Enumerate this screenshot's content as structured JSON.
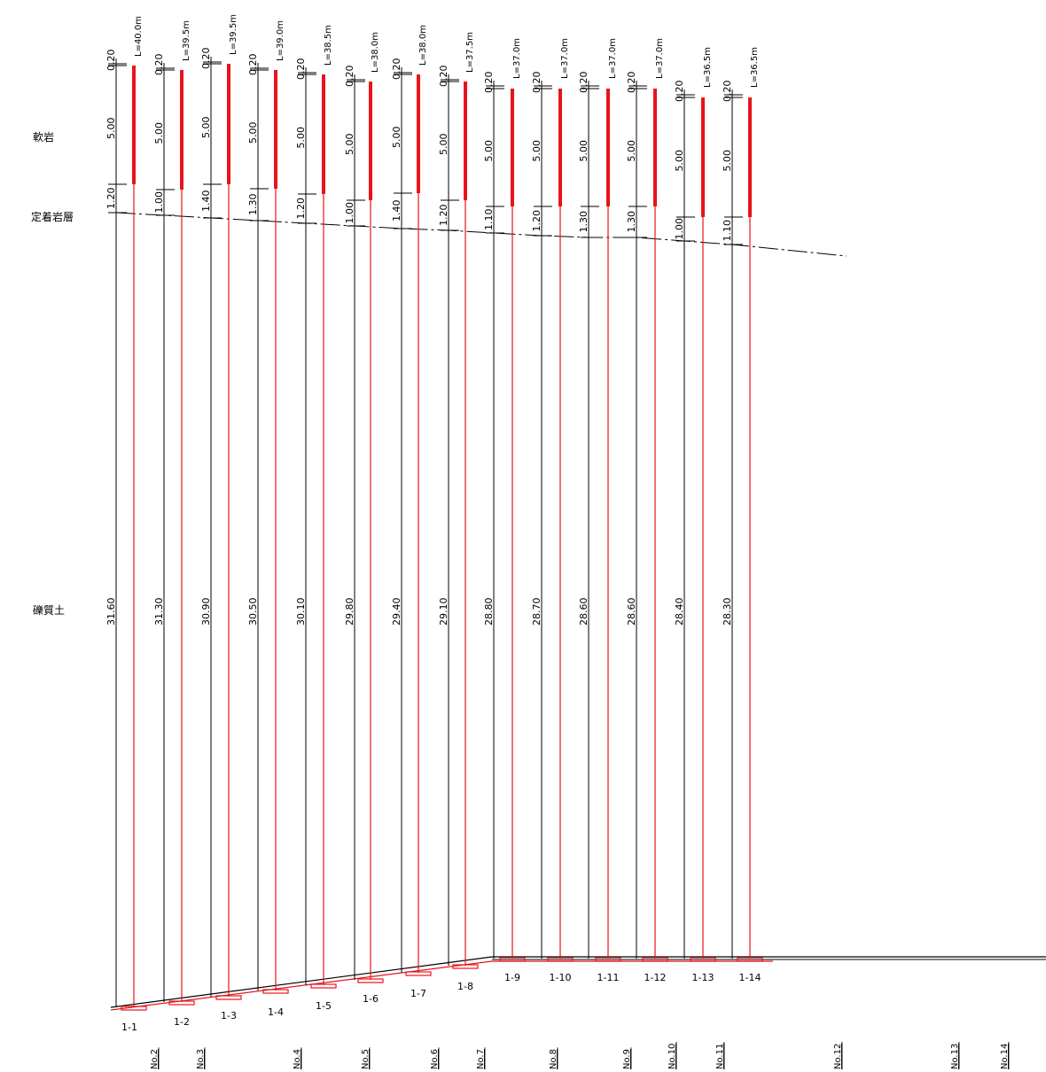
{
  "layers": [
    {
      "id": "soft_rock",
      "label": "軟岩"
    },
    {
      "id": "anchor_layer",
      "label": "定着岩層"
    },
    {
      "id": "gravel_soil",
      "label": "礫質土"
    }
  ],
  "colors": {
    "anchor": "#e8141b",
    "line": "#000000"
  },
  "anchors": [
    {
      "id": "1-1",
      "length": "L=40.0m",
      "free_top": "0.20",
      "bond": "5.00",
      "bond_to_layer": "1.20",
      "to_bottom": "31.60"
    },
    {
      "id": "1-2",
      "length": "L=39.5m",
      "free_top": "0.20",
      "bond": "5.00",
      "bond_to_layer": "1.00",
      "to_bottom": "31.30"
    },
    {
      "id": "1-3",
      "length": "L=39.5m",
      "free_top": "0.20",
      "bond": "5.00",
      "bond_to_layer": "1.40",
      "to_bottom": "30.90"
    },
    {
      "id": "1-4",
      "length": "L=39.0m",
      "free_top": "0.20",
      "bond": "5.00",
      "bond_to_layer": "1.30",
      "to_bottom": "30.50"
    },
    {
      "id": "1-5",
      "length": "L=38.5m",
      "free_top": "0.20",
      "bond": "5.00",
      "bond_to_layer": "1.20",
      "to_bottom": "30.10"
    },
    {
      "id": "1-6",
      "length": "L=38.0m",
      "free_top": "0.20",
      "bond": "5.00",
      "bond_to_layer": "1.00",
      "to_bottom": "29.80"
    },
    {
      "id": "1-7",
      "length": "L=38.0m",
      "free_top": "0.20",
      "bond": "5.00",
      "bond_to_layer": "1.40",
      "to_bottom": "29.40"
    },
    {
      "id": "1-8",
      "length": "L=37.5m",
      "free_top": "0.20",
      "bond": "5.00",
      "bond_to_layer": "1.20",
      "to_bottom": "29.10"
    },
    {
      "id": "1-9",
      "length": "L=37.0m",
      "free_top": "0.20",
      "bond": "5.00",
      "bond_to_layer": "1.10",
      "to_bottom": "28.80"
    },
    {
      "id": "1-10",
      "length": "L=37.0m",
      "free_top": "0.20",
      "bond": "5.00",
      "bond_to_layer": "1.20",
      "to_bottom": "28.70"
    },
    {
      "id": "1-11",
      "length": "L=37.0m",
      "free_top": "0.20",
      "bond": "5.00",
      "bond_to_layer": "1.30",
      "to_bottom": "28.60"
    },
    {
      "id": "1-12",
      "length": "L=37.0m",
      "free_top": "0.20",
      "bond": "5.00",
      "bond_to_layer": "1.30",
      "to_bottom": "28.60"
    },
    {
      "id": "1-13",
      "length": "L=36.5m",
      "free_top": "0.20",
      "bond": "5.00",
      "bond_to_layer": "1.00",
      "to_bottom": "28.40"
    },
    {
      "id": "1-14",
      "length": "L=36.5m",
      "free_top": "0.20",
      "bond": "5.00",
      "bond_to_layer": "1.10",
      "to_bottom": "28.30"
    }
  ],
  "stations": [
    "No.2",
    "No.3",
    "No.4",
    "No.5",
    "No.6",
    "No.7",
    "No.8",
    "No.9",
    "No.10",
    "No.11",
    "No.12",
    "No.13",
    "No.14"
  ]
}
